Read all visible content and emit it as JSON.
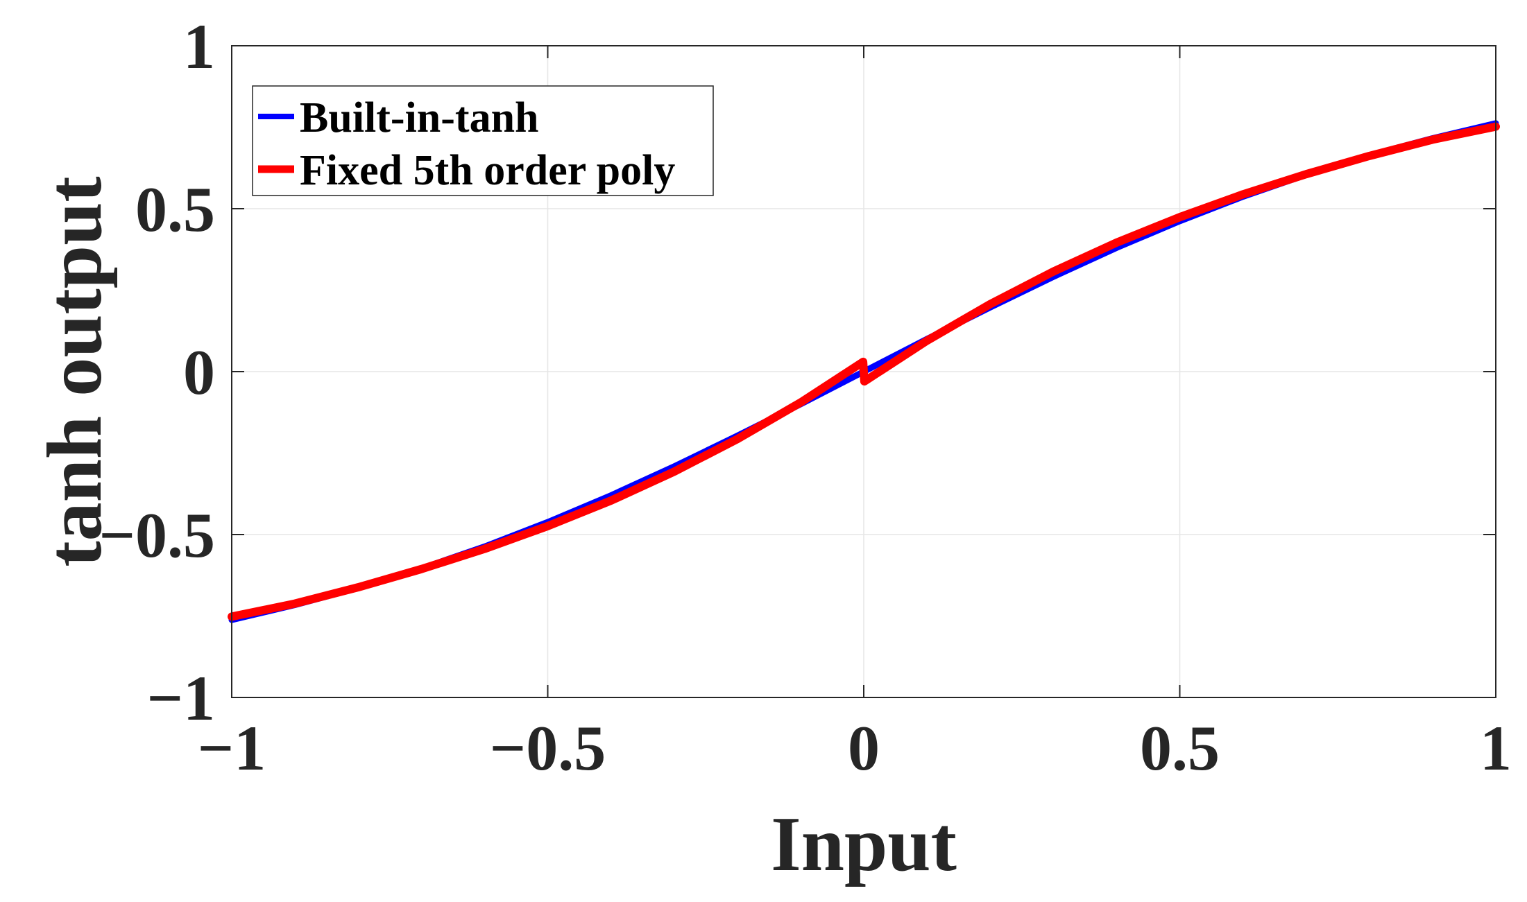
{
  "chart_data": {
    "type": "line",
    "title": "",
    "xlabel": "Input",
    "ylabel": "tanh output",
    "xlim": [
      -1,
      1
    ],
    "ylim": [
      -1,
      1
    ],
    "xticks": [
      -1,
      -0.5,
      0,
      0.5,
      1
    ],
    "xtick_labels": [
      "−1",
      "−0.5",
      "0",
      "0.5",
      "1"
    ],
    "yticks": [
      -1,
      -0.5,
      0,
      0.5,
      1
    ],
    "ytick_labels": [
      "−1",
      "−0.5",
      "0",
      "0.5",
      "1"
    ],
    "grid": true,
    "legend_position": "top-left",
    "series": [
      {
        "name": "Built-in-tanh",
        "color": "#0000ff",
        "x": [
          -1,
          -0.9,
          -0.8,
          -0.7,
          -0.6,
          -0.5,
          -0.4,
          -0.3,
          -0.2,
          -0.1,
          0,
          0.1,
          0.2,
          0.3,
          0.4,
          0.5,
          0.6,
          0.7,
          0.8,
          0.9,
          1
        ],
        "y": [
          -0.762,
          -0.716,
          -0.664,
          -0.604,
          -0.537,
          -0.462,
          -0.38,
          -0.291,
          -0.197,
          -0.1,
          0,
          0.1,
          0.197,
          0.291,
          0.38,
          0.462,
          0.537,
          0.604,
          0.664,
          0.716,
          0.762
        ]
      },
      {
        "name": "Fixed 5th order poly",
        "color": "#ff0000",
        "x": [
          -1,
          -0.9,
          -0.8,
          -0.7,
          -0.6,
          -0.5,
          -0.4,
          -0.3,
          -0.2,
          -0.1,
          -0.001,
          0.001,
          0.1,
          0.2,
          0.3,
          0.4,
          0.5,
          0.6,
          0.7,
          0.8,
          0.9,
          1
        ],
        "y": [
          -0.752,
          -0.712,
          -0.662,
          -0.606,
          -0.544,
          -0.474,
          -0.396,
          -0.307,
          -0.207,
          -0.095,
          0.03,
          -0.03,
          0.095,
          0.207,
          0.307,
          0.396,
          0.474,
          0.544,
          0.606,
          0.662,
          0.712,
          0.752
        ]
      }
    ]
  }
}
